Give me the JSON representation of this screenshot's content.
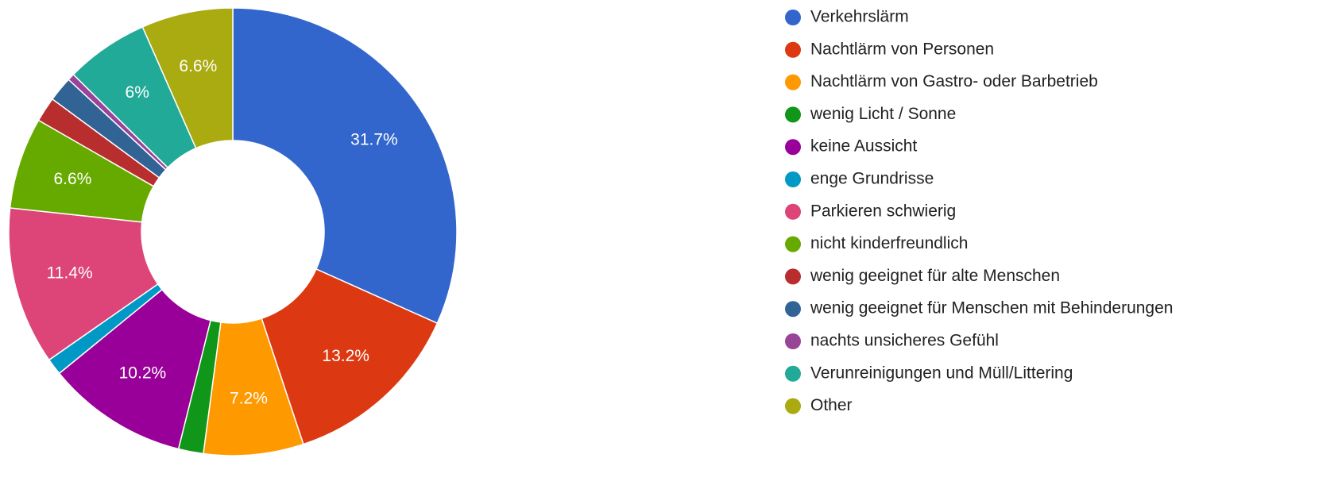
{
  "chart_data": {
    "type": "donut",
    "categories": [
      "Verkehrslärm",
      "Nachtlärm von Personen",
      "Nachtlärm von Gastro- oder Barbetrieb",
      "wenig Licht / Sonne",
      "keine Aussicht",
      "enge Grundrisse",
      "Parkieren schwierig",
      "nicht kinderfreundlich",
      "wenig geeignet für alte Menschen",
      "wenig geeignet für Menschen mit Behinderungen",
      "nachts unsicheres Gefühl",
      "Verunreinigungen und Müll/Littering",
      "Other"
    ],
    "values": [
      31.7,
      13.2,
      7.2,
      1.8,
      10.2,
      1.2,
      11.4,
      6.6,
      1.8,
      1.8,
      0.5,
      6,
      6.6
    ],
    "value_labels": [
      "31.7%",
      "13.2%",
      "7.2%",
      null,
      "10.2%",
      null,
      "11.4%",
      "6.6%",
      null,
      null,
      null,
      "6%",
      "6.6%"
    ],
    "colors": [
      "#3366cc",
      "#dc3912",
      "#ff9900",
      "#109618",
      "#990099",
      "#0099c6",
      "#dd4477",
      "#66aa00",
      "#b82e2e",
      "#316395",
      "#994499",
      "#22aa99",
      "#aaaa11"
    ],
    "legend": "right"
  }
}
